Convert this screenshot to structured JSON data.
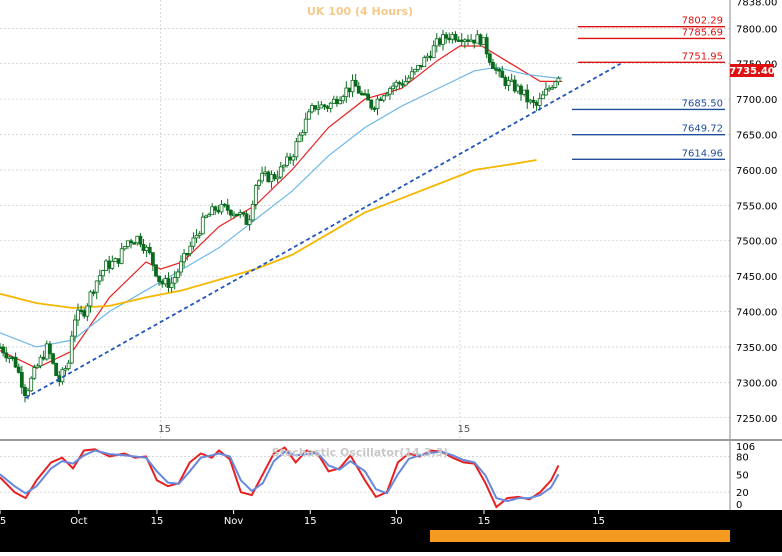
{
  "title": "UK 100 (4 Hours)",
  "price_label": "7735.40",
  "oscillator_label": "Stochastic Oscillator(14,3,3)",
  "colors": {
    "background": "#ffffff",
    "title": "#f5c98a",
    "grid": "#c0c0c0",
    "candle": "#0a6b1e",
    "ema_fast": "#e82020",
    "ema_mid": "#6eb8e8",
    "ema_slow": "#f5b800",
    "trendline": "#2255bb",
    "resistance": "#dd1111",
    "support": "#1f4e9a",
    "osc_k": "#e82020",
    "osc_d": "#6688dd",
    "axis_bg": "#000000",
    "axis_text": "#ffffff"
  },
  "chart_data": [
    {
      "type": "candlestick",
      "title": "UK 100 (4 Hours)",
      "ylim": [
        7220,
        7840
      ],
      "y_ticks": [
        "7838.00",
        "7800.00",
        "7750.00",
        "7700.00",
        "7650.00",
        "7600.00",
        "7550.00",
        "7500.00",
        "7450.00",
        "7400.00",
        "7350.00",
        "7300.00",
        "7250.00"
      ],
      "inner_x_labels": [
        {
          "label": "15",
          "t": 0.22
        },
        {
          "label": "15",
          "t": 0.63
        }
      ],
      "date_labels": [
        {
          "label": "5",
          "t": 0.0
        },
        {
          "label": "Oct",
          "t": 0.108
        },
        {
          "label": "15",
          "t": 0.215
        },
        {
          "label": "Nov",
          "t": 0.32
        },
        {
          "label": "15",
          "t": 0.425
        },
        {
          "label": "30",
          "t": 0.543
        },
        {
          "label": "15",
          "t": 0.663
        },
        {
          "label": "15",
          "t": 0.82
        }
      ],
      "current_price": 7735.4,
      "resistance_levels": [
        7802.29,
        7785.69,
        7751.95
      ],
      "support_levels": [
        7685.5,
        7649.72,
        7614.96
      ],
      "trendline": {
        "from": [
          0.035,
          7278
        ],
        "to": [
          0.85,
          7750
        ]
      },
      "close_path": [
        [
          0.0,
          7350
        ],
        [
          0.02,
          7330
        ],
        [
          0.035,
          7285
        ],
        [
          0.05,
          7320
        ],
        [
          0.065,
          7350
        ],
        [
          0.08,
          7300
        ],
        [
          0.095,
          7330
        ],
        [
          0.1,
          7390
        ],
        [
          0.115,
          7400
        ],
        [
          0.13,
          7440
        ],
        [
          0.145,
          7465
        ],
        [
          0.16,
          7470
        ],
        [
          0.175,
          7500
        ],
        [
          0.19,
          7505
        ],
        [
          0.205,
          7480
        ],
        [
          0.22,
          7440
        ],
        [
          0.235,
          7440
        ],
        [
          0.25,
          7470
        ],
        [
          0.265,
          7500
        ],
        [
          0.28,
          7530
        ],
        [
          0.295,
          7545
        ],
        [
          0.31,
          7545
        ],
        [
          0.325,
          7540
        ],
        [
          0.34,
          7525
        ],
        [
          0.35,
          7580
        ],
        [
          0.36,
          7590
        ],
        [
          0.375,
          7590
        ],
        [
          0.385,
          7600
        ],
        [
          0.4,
          7620
        ],
        [
          0.415,
          7660
        ],
        [
          0.43,
          7690
        ],
        [
          0.45,
          7690
        ],
        [
          0.47,
          7710
        ],
        [
          0.485,
          7720
        ],
        [
          0.5,
          7700
        ],
        [
          0.51,
          7690
        ],
        [
          0.525,
          7710
        ],
        [
          0.54,
          7720
        ],
        [
          0.555,
          7725
        ],
        [
          0.57,
          7740
        ],
        [
          0.585,
          7760
        ],
        [
          0.6,
          7780
        ],
        [
          0.615,
          7790
        ],
        [
          0.63,
          7790
        ],
        [
          0.645,
          7785
        ],
        [
          0.66,
          7785
        ],
        [
          0.67,
          7760
        ],
        [
          0.685,
          7730
        ],
        [
          0.7,
          7720
        ],
        [
          0.715,
          7710
        ],
        [
          0.725,
          7695
        ],
        [
          0.735,
          7690
        ],
        [
          0.745,
          7705
        ],
        [
          0.755,
          7720
        ],
        [
          0.765,
          7735
        ]
      ],
      "lines": [
        {
          "name": "ema_fast",
          "color_key": "ema_fast",
          "points": [
            [
              0.0,
              7345
            ],
            [
              0.05,
              7320
            ],
            [
              0.1,
              7345
            ],
            [
              0.15,
              7420
            ],
            [
              0.2,
              7470
            ],
            [
              0.22,
              7460
            ],
            [
              0.25,
              7470
            ],
            [
              0.3,
              7520
            ],
            [
              0.35,
              7550
            ],
            [
              0.4,
              7600
            ],
            [
              0.45,
              7660
            ],
            [
              0.5,
              7700
            ],
            [
              0.55,
              7715
            ],
            [
              0.6,
              7755
            ],
            [
              0.63,
              7775
            ],
            [
              0.66,
              7775
            ],
            [
              0.7,
              7750
            ],
            [
              0.74,
              7725
            ],
            [
              0.77,
              7725
            ]
          ]
        },
        {
          "name": "ema_mid",
          "color_key": "ema_mid",
          "points": [
            [
              0.0,
              7370
            ],
            [
              0.05,
              7350
            ],
            [
              0.1,
              7360
            ],
            [
              0.15,
              7400
            ],
            [
              0.2,
              7430
            ],
            [
              0.25,
              7460
            ],
            [
              0.3,
              7490
            ],
            [
              0.35,
              7530
            ],
            [
              0.4,
              7570
            ],
            [
              0.45,
              7620
            ],
            [
              0.5,
              7660
            ],
            [
              0.55,
              7690
            ],
            [
              0.6,
              7715
            ],
            [
              0.65,
              7740
            ],
            [
              0.68,
              7745
            ],
            [
              0.72,
              7735
            ],
            [
              0.76,
              7730
            ],
            [
              0.77,
              7730
            ]
          ]
        },
        {
          "name": "ema_slow",
          "color_key": "ema_slow",
          "points": [
            [
              0.0,
              7425
            ],
            [
              0.05,
              7412
            ],
            [
              0.1,
              7405
            ],
            [
              0.15,
              7408
            ],
            [
              0.2,
              7420
            ],
            [
              0.25,
              7430
            ],
            [
              0.3,
              7445
            ],
            [
              0.35,
              7460
            ],
            [
              0.4,
              7480
            ],
            [
              0.45,
              7510
            ],
            [
              0.5,
              7540
            ],
            [
              0.55,
              7560
            ],
            [
              0.6,
              7580
            ],
            [
              0.65,
              7600
            ],
            [
              0.7,
              7608
            ],
            [
              0.735,
              7614
            ]
          ]
        }
      ]
    },
    {
      "type": "line",
      "title": "Stochastic Oscillator(14,3,3)",
      "ylim": [
        -10,
        106
      ],
      "y_ticks": [
        "106",
        "80",
        "50",
        "20",
        "0"
      ],
      "series": [
        {
          "color_key": "osc_k",
          "values": [
            [
              0.0,
              45
            ],
            [
              0.02,
              20
            ],
            [
              0.035,
              10
            ],
            [
              0.05,
              40
            ],
            [
              0.07,
              70
            ],
            [
              0.085,
              78
            ],
            [
              0.1,
              60
            ],
            [
              0.115,
              90
            ],
            [
              0.13,
              92
            ],
            [
              0.15,
              80
            ],
            [
              0.17,
              85
            ],
            [
              0.185,
              78
            ],
            [
              0.2,
              80
            ],
            [
              0.215,
              40
            ],
            [
              0.23,
              30
            ],
            [
              0.245,
              35
            ],
            [
              0.26,
              70
            ],
            [
              0.275,
              85
            ],
            [
              0.29,
              78
            ],
            [
              0.3,
              90
            ],
            [
              0.315,
              75
            ],
            [
              0.33,
              20
            ],
            [
              0.345,
              15
            ],
            [
              0.36,
              50
            ],
            [
              0.375,
              85
            ],
            [
              0.39,
              95
            ],
            [
              0.405,
              70
            ],
            [
              0.42,
              90
            ],
            [
              0.435,
              85
            ],
            [
              0.45,
              55
            ],
            [
              0.465,
              60
            ],
            [
              0.48,
              82
            ],
            [
              0.5,
              40
            ],
            [
              0.515,
              12
            ],
            [
              0.53,
              20
            ],
            [
              0.545,
              70
            ],
            [
              0.56,
              85
            ],
            [
              0.575,
              80
            ],
            [
              0.59,
              90
            ],
            [
              0.605,
              88
            ],
            [
              0.62,
              78
            ],
            [
              0.635,
              70
            ],
            [
              0.65,
              68
            ],
            [
              0.665,
              35
            ],
            [
              0.68,
              -5
            ],
            [
              0.695,
              10
            ],
            [
              0.71,
              12
            ],
            [
              0.725,
              8
            ],
            [
              0.74,
              20
            ],
            [
              0.755,
              40
            ],
            [
              0.765,
              65
            ]
          ]
        },
        {
          "color_key": "osc_d",
          "values": [
            [
              0.0,
              50
            ],
            [
              0.02,
              30
            ],
            [
              0.035,
              18
            ],
            [
              0.05,
              30
            ],
            [
              0.07,
              60
            ],
            [
              0.085,
              72
            ],
            [
              0.1,
              68
            ],
            [
              0.115,
              82
            ],
            [
              0.13,
              90
            ],
            [
              0.15,
              84
            ],
            [
              0.17,
              82
            ],
            [
              0.185,
              80
            ],
            [
              0.2,
              78
            ],
            [
              0.215,
              55
            ],
            [
              0.23,
              36
            ],
            [
              0.245,
              34
            ],
            [
              0.26,
              55
            ],
            [
              0.275,
              78
            ],
            [
              0.29,
              82
            ],
            [
              0.3,
              85
            ],
            [
              0.315,
              80
            ],
            [
              0.33,
              40
            ],
            [
              0.345,
              22
            ],
            [
              0.36,
              35
            ],
            [
              0.375,
              72
            ],
            [
              0.39,
              88
            ],
            [
              0.405,
              82
            ],
            [
              0.42,
              84
            ],
            [
              0.435,
              86
            ],
            [
              0.45,
              65
            ],
            [
              0.465,
              58
            ],
            [
              0.48,
              72
            ],
            [
              0.5,
              55
            ],
            [
              0.515,
              25
            ],
            [
              0.53,
              18
            ],
            [
              0.545,
              50
            ],
            [
              0.56,
              76
            ],
            [
              0.575,
              82
            ],
            [
              0.59,
              86
            ],
            [
              0.605,
              88
            ],
            [
              0.62,
              82
            ],
            [
              0.635,
              74
            ],
            [
              0.65,
              70
            ],
            [
              0.665,
              48
            ],
            [
              0.68,
              10
            ],
            [
              0.695,
              5
            ],
            [
              0.71,
              10
            ],
            [
              0.725,
              10
            ],
            [
              0.74,
              15
            ],
            [
              0.755,
              28
            ],
            [
              0.765,
              50
            ]
          ]
        }
      ]
    }
  ]
}
